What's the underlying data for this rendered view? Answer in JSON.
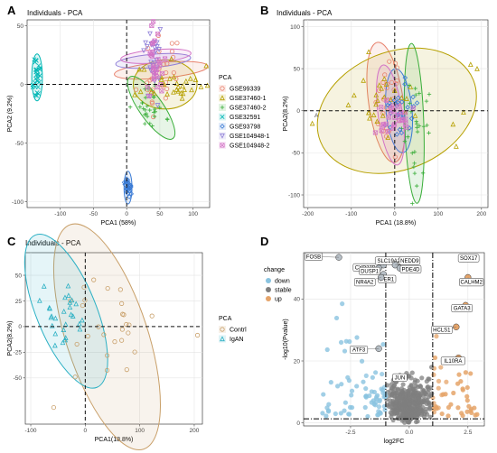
{
  "figure": {
    "panel_labels": [
      "A",
      "B",
      "C",
      "D"
    ]
  },
  "colors": {
    "GSE99339": "#e8826e",
    "GSE37460-1": "#b6a000",
    "GSE37460-2": "#3aae3a",
    "GSE32591": "#00b7b5",
    "GSE93798": "#3a7bd5",
    "GSE104948-1": "#8f7fd8",
    "GSE104948-2": "#d373c6",
    "Contrl": "#c9a06a",
    "IgAN": "#2bb0c4",
    "down": "#89c3e0",
    "stable": "#7f7f7f",
    "up": "#e5a46a"
  },
  "chart_data": [
    {
      "panel": "A",
      "type": "scatter",
      "title": "Individuals - PCA",
      "xlabel": "PCA1 (58%)",
      "ylabel": "PCA2 (9.2%)",
      "xlim": [
        -150,
        125
      ],
      "ylim": [
        -105,
        55
      ],
      "xticks": [
        -100,
        -50,
        0,
        50,
        100
      ],
      "yticks": [
        -100,
        -50,
        0,
        50
      ],
      "grid": true,
      "legend": {
        "title": "PCA",
        "placement": "right"
      },
      "series": [
        {
          "name": "GSE99339",
          "shape": "circle",
          "center": [
            52,
            12
          ],
          "spread": [
            15,
            23
          ],
          "ellipse": [
            52,
            12,
            12,
            40,
            95
          ]
        },
        {
          "name": "GSE37460-1",
          "shape": "triangle",
          "center": [
            62,
            0
          ],
          "spread": [
            25,
            8
          ],
          "ellipse": [
            58,
            0,
            48,
            21,
            0
          ],
          "points": [
            [
              96,
              5
            ],
            [
              104,
              4
            ],
            [
              112,
              -2
            ]
          ]
        },
        {
          "name": "GSE37460-2",
          "shape": "plus",
          "center": [
            35,
            -20
          ],
          "spread": [
            12,
            10
          ],
          "ellipse": [
            37,
            -20,
            18,
            32,
            35
          ]
        },
        {
          "name": "GSE32591",
          "shape": "x",
          "center": [
            -135,
            6
          ],
          "spread": [
            3,
            10
          ],
          "ellipse": [
            -135,
            6,
            8,
            20,
            0
          ]
        },
        {
          "name": "GSE93798",
          "shape": "diamond",
          "center": [
            2,
            -88
          ],
          "spread": [
            2,
            5
          ],
          "ellipse": [
            2,
            -88,
            6,
            14,
            0
          ]
        },
        {
          "name": "GSE104948-1",
          "shape": "triangle-down",
          "center": [
            40,
            20
          ],
          "spread": [
            8,
            18
          ],
          "ellipse": [
            40,
            20,
            10,
            32,
            95
          ]
        },
        {
          "name": "GSE104948-2",
          "shape": "square-x",
          "center": [
            44,
            24
          ],
          "spread": [
            8,
            16
          ],
          "ellipse": [
            44,
            24,
            10,
            30,
            95
          ]
        }
      ]
    },
    {
      "panel": "B",
      "type": "scatter",
      "title": "Individuals - PCA",
      "xlabel": "PCA1 (18.8%)",
      "ylabel": "PCA2(8.2%)",
      "xlim": [
        -210,
        215
      ],
      "ylim": [
        -115,
        108
      ],
      "xticks": [
        -200,
        -100,
        0,
        100,
        200
      ],
      "yticks": [
        -100,
        -50,
        0,
        50,
        100
      ],
      "grid": true,
      "annotation": "A",
      "series": [
        {
          "name": "GSE99339",
          "shape": "circle",
          "center": [
            -20,
            10
          ],
          "spread": [
            20,
            25
          ],
          "ellipse": [
            -20,
            10,
            40,
            72,
            8
          ]
        },
        {
          "name": "GSE37460-1",
          "shape": "triangle",
          "center": [
            0,
            10
          ],
          "spread": [
            60,
            20
          ],
          "ellipse": [
            5,
            0,
            190,
            70,
            22
          ],
          "points": [
            [
              -190,
              -15
            ],
            [
              175,
              55
            ],
            [
              190,
              50
            ],
            [
              -60,
              70
            ]
          ]
        },
        {
          "name": "GSE37460-2",
          "shape": "plus",
          "center": [
            45,
            -20
          ],
          "spread": [
            14,
            35
          ],
          "ellipse": [
            45,
            -15,
            22,
            95,
            2
          ]
        },
        {
          "name": "GSE93798",
          "shape": "diamond",
          "center": [
            10,
            0
          ],
          "spread": [
            20,
            15
          ],
          "ellipse": [
            10,
            0,
            30,
            50,
            5
          ]
        },
        {
          "name": "GSE104948-2",
          "shape": "square-x",
          "center": [
            -10,
            -10
          ],
          "spread": [
            20,
            15
          ],
          "ellipse": [
            -10,
            -5,
            28,
            60,
            8
          ]
        }
      ]
    },
    {
      "panel": "C",
      "type": "scatter",
      "title": "Individuals - PCA",
      "xlabel": "PCA1(18.8%)",
      "ylabel": "PCA2(8.2%)",
      "xlim": [
        -110,
        215
      ],
      "ylim": [
        -95,
        72
      ],
      "xticks": [
        -100,
        0,
        100,
        200
      ],
      "yticks": [
        -50,
        -25,
        0,
        25,
        50
      ],
      "grid": true,
      "legend": {
        "title": "PCA",
        "placement": "right"
      },
      "series": [
        {
          "name": "Contrl",
          "shape": "circle",
          "center": [
            30,
            0
          ],
          "spread": [
            55,
            25
          ],
          "ellipse": [
            40,
            -10,
            75,
            115,
            18
          ]
        },
        {
          "name": "IgAN",
          "shape": "triangle",
          "center": [
            -45,
            10
          ],
          "spread": [
            22,
            20
          ],
          "ellipse": [
            -35,
            15,
            55,
            80,
            22
          ]
        }
      ]
    },
    {
      "panel": "D",
      "type": "scatter",
      "xlabel": "log2FC",
      "ylabel": "-log10(Pvalue)",
      "xlim": [
        -4.5,
        3.2
      ],
      "ylim": [
        -1,
        55
      ],
      "xticks": [
        -2.5,
        0.0,
        2.5
      ],
      "yticks": [
        0,
        20,
        40
      ],
      "fc_cutoff": 1,
      "p_line": 1.3,
      "grid": true,
      "legend": {
        "title": "change",
        "placement": "top-left",
        "items": [
          "down",
          "stable",
          "up"
        ]
      },
      "labeled_genes": [
        {
          "name": "FOSB",
          "x": -3.0,
          "y": 53.5
        },
        {
          "name": "CYP27B1",
          "x": -1.5,
          "y": 50
        },
        {
          "name": "SLC19A2",
          "x": -1.1,
          "y": 51
        },
        {
          "name": "NEDD9",
          "x": -0.6,
          "y": 51
        },
        {
          "name": "SOX17",
          "x": 2.3,
          "y": 53
        },
        {
          "name": "DUSP1",
          "x": -1.3,
          "y": 50
        },
        {
          "name": "PDE4D",
          "x": -0.4,
          "y": 50
        },
        {
          "name": "PER1",
          "x": -1.1,
          "y": 48
        },
        {
          "name": "NR4A2",
          "x": -1.2,
          "y": 47
        },
        {
          "name": "CALHM2",
          "x": 2.5,
          "y": 47
        },
        {
          "name": "GATA3",
          "x": 2.4,
          "y": 38
        },
        {
          "name": "HCLS1",
          "x": 2.0,
          "y": 31
        },
        {
          "name": "ATF3",
          "x": -1.3,
          "y": 24
        },
        {
          "name": "JUN",
          "x": -0.4,
          "y": 15
        },
        {
          "name": "IL10RA",
          "x": 2.1,
          "y": 21
        }
      ]
    }
  ]
}
